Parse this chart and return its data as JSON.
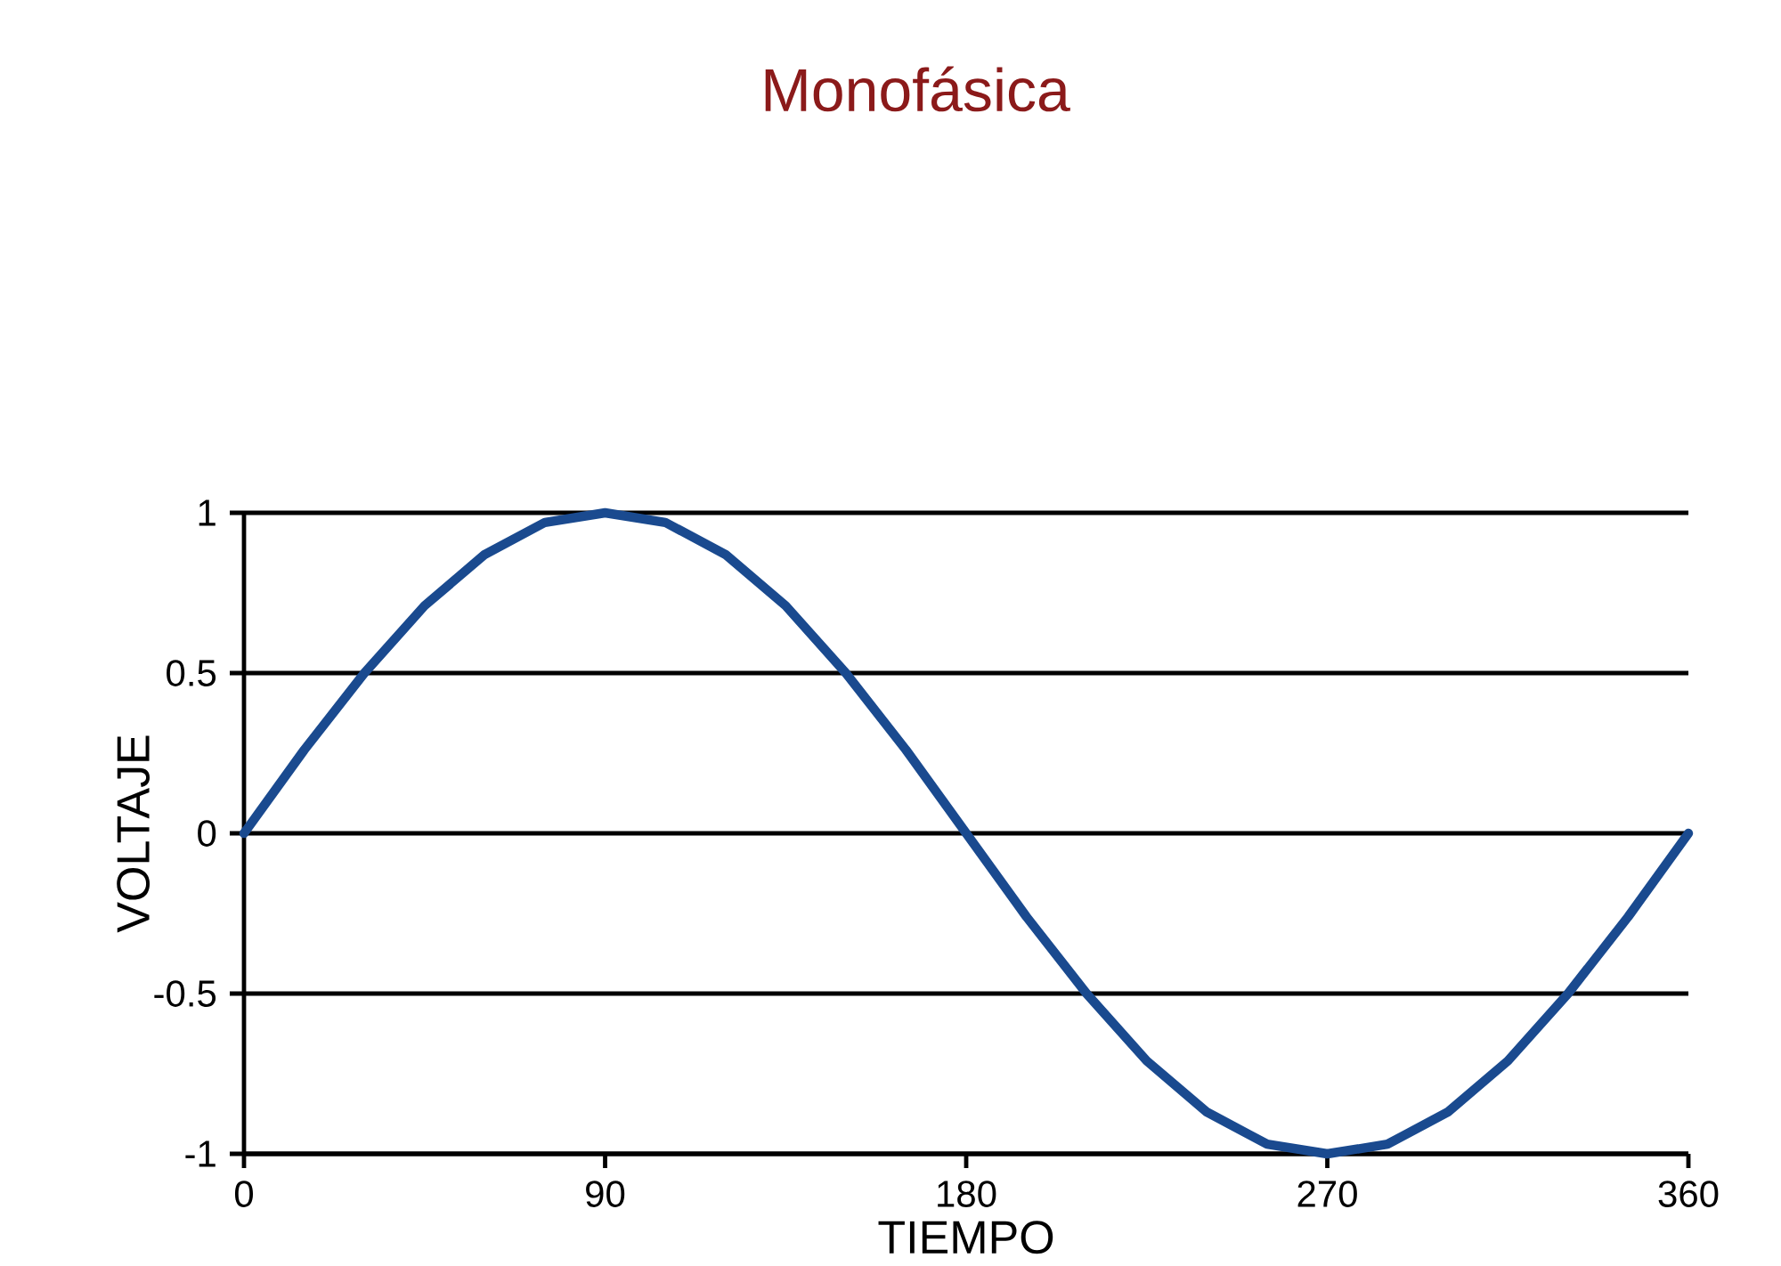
{
  "chart_data": {
    "type": "line",
    "title": "Monofásica",
    "xlabel": "TIEMPO",
    "ylabel": "VOLTAJE",
    "x": [
      0,
      15,
      30,
      45,
      60,
      75,
      90,
      105,
      120,
      135,
      150,
      165,
      180,
      195,
      210,
      225,
      240,
      255,
      270,
      285,
      300,
      315,
      330,
      345,
      360
    ],
    "series": [
      {
        "color": "#1a4a8f",
        "values": [
          0,
          0.26,
          0.5,
          0.71,
          0.87,
          0.97,
          1,
          0.97,
          0.87,
          0.71,
          0.5,
          0.26,
          0,
          -0.26,
          -0.5,
          -0.71,
          -0.87,
          -0.97,
          -1,
          -0.97,
          -0.87,
          -0.71,
          -0.5,
          -0.26,
          0
        ]
      }
    ],
    "xlim": [
      0,
      360
    ],
    "ylim": [
      -1,
      1
    ],
    "xticks": [
      0,
      90,
      180,
      270,
      360
    ],
    "yticks": [
      -1,
      -0.5,
      0,
      0.5,
      1
    ],
    "grid": "y",
    "marker": "none",
    "line_style": "solid"
  }
}
